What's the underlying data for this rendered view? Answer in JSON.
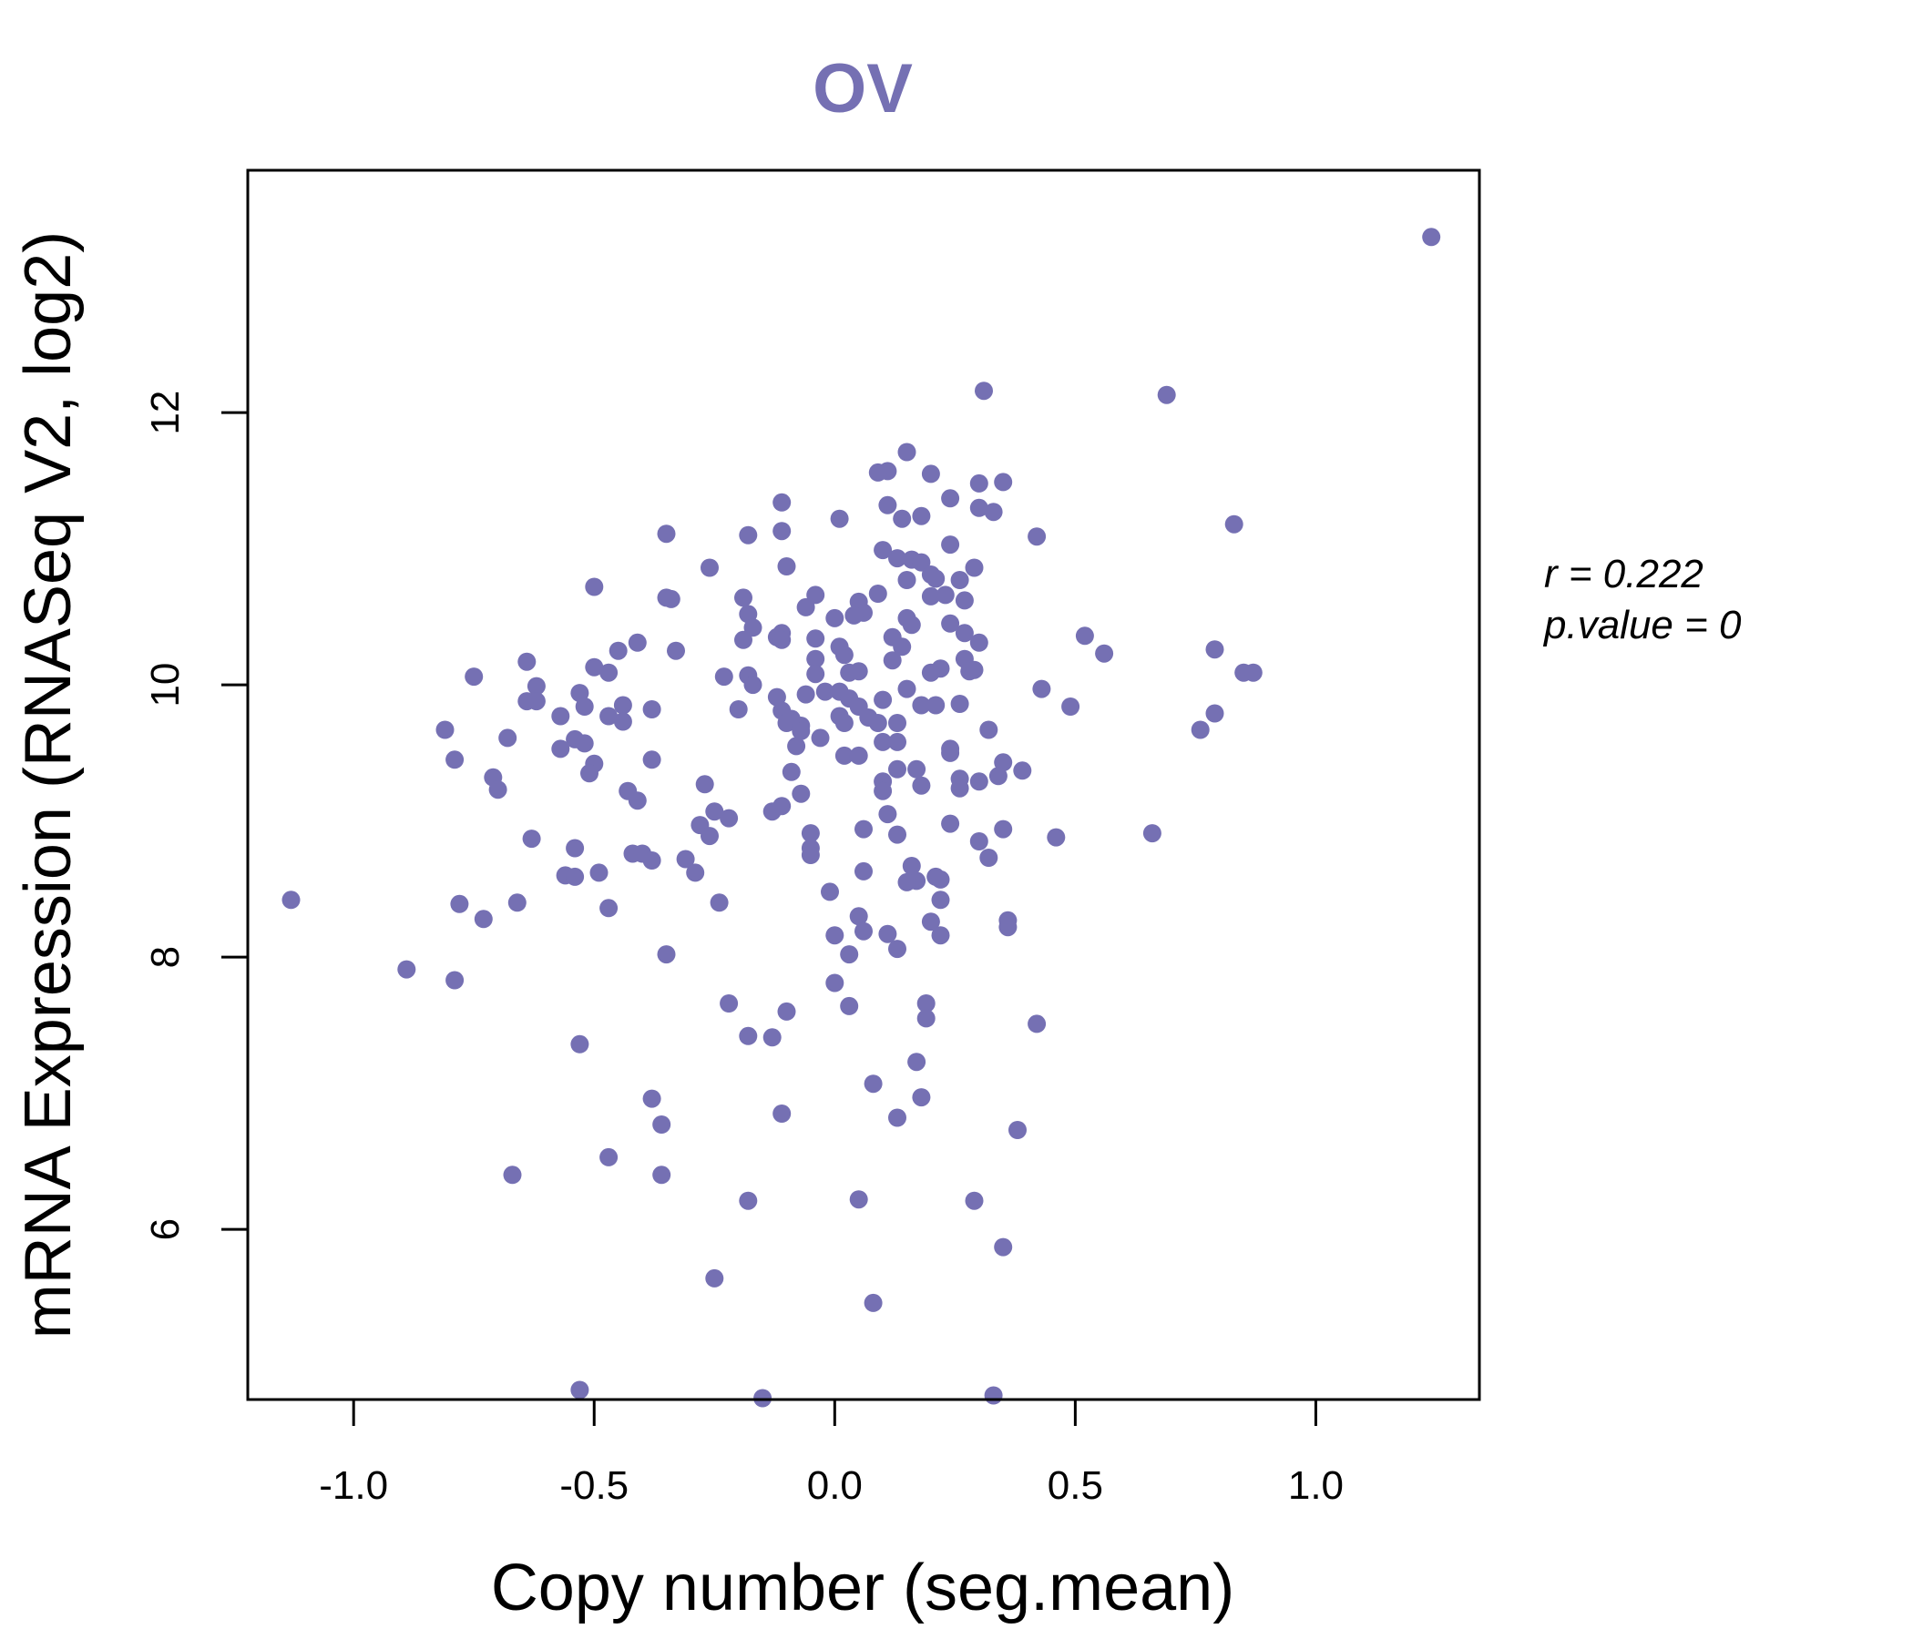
{
  "chart_data": {
    "type": "scatter",
    "title": "OV",
    "xlabel": "Copy number (seg.mean)",
    "ylabel": "mRNA Expression (RNASeq V2, log2)",
    "xlim": [
      -1.22,
      1.34
    ],
    "ylim": [
      4.75,
      13.78
    ],
    "xticks": [
      -1.0,
      -0.5,
      0.0,
      0.5,
      1.0
    ],
    "xtick_labels": [
      "-1.0",
      "-0.5",
      "0.0",
      "0.5",
      "1.0"
    ],
    "yticks": [
      6,
      8,
      10,
      12
    ],
    "ytick_labels": [
      "6",
      "8",
      "10",
      "12"
    ],
    "grid": false,
    "legend": "none",
    "annotations": [
      "r = 0.222",
      "p.value = 0"
    ],
    "colors": {
      "points": "#7570B3",
      "title": "#7570B3"
    },
    "points": [
      [
        1.24,
        13.29
      ],
      [
        0.31,
        12.16
      ],
      [
        0.69,
        12.13
      ],
      [
        0.15,
        11.71
      ],
      [
        0.11,
        11.57
      ],
      [
        0.2,
        11.55
      ],
      [
        0.09,
        11.56
      ],
      [
        0.3,
        11.48
      ],
      [
        0.35,
        11.49
      ],
      [
        0.24,
        11.37
      ],
      [
        0.11,
        11.32
      ],
      [
        -0.11,
        11.34
      ],
      [
        0.3,
        11.3
      ],
      [
        0.33,
        11.27
      ],
      [
        0.14,
        11.22
      ],
      [
        0.18,
        11.24
      ],
      [
        0.01,
        11.22
      ],
      [
        0.83,
        11.18
      ],
      [
        -0.11,
        11.13
      ],
      [
        0.42,
        11.09
      ],
      [
        -0.35,
        11.11
      ],
      [
        -0.18,
        11.1
      ],
      [
        0.24,
        11.03
      ],
      [
        0.1,
        10.99
      ],
      [
        0.13,
        10.93
      ],
      [
        0.16,
        10.92
      ],
      [
        0.18,
        10.9
      ],
      [
        -0.26,
        10.86
      ],
      [
        -0.1,
        10.87
      ],
      [
        0.29,
        10.86
      ],
      [
        0.2,
        10.81
      ],
      [
        0.15,
        10.77
      ],
      [
        0.21,
        10.78
      ],
      [
        0.26,
        10.77
      ],
      [
        -0.5,
        10.72
      ],
      [
        0.09,
        10.67
      ],
      [
        -0.04,
        10.66
      ],
      [
        -0.35,
        10.64
      ],
      [
        -0.34,
        10.63
      ],
      [
        -0.19,
        10.64
      ],
      [
        0.2,
        10.65
      ],
      [
        0.23,
        10.66
      ],
      [
        0.27,
        10.62
      ],
      [
        0.05,
        10.61
      ],
      [
        -0.06,
        10.57
      ],
      [
        0.06,
        10.53
      ],
      [
        -0.18,
        10.52
      ],
      [
        0.04,
        10.51
      ],
      [
        0.0,
        10.49
      ],
      [
        0.15,
        10.49
      ],
      [
        0.16,
        10.44
      ],
      [
        -0.17,
        10.42
      ],
      [
        -0.11,
        10.38
      ],
      [
        -0.12,
        10.35
      ],
      [
        0.24,
        10.45
      ],
      [
        0.12,
        10.35
      ],
      [
        0.52,
        10.36
      ],
      [
        0.27,
        10.38
      ],
      [
        -0.19,
        10.33
      ],
      [
        -0.04,
        10.34
      ],
      [
        -0.41,
        10.31
      ],
      [
        -0.11,
        10.33
      ],
      [
        0.14,
        10.28
      ],
      [
        0.01,
        10.28
      ],
      [
        0.3,
        10.31
      ],
      [
        -0.45,
        10.25
      ],
      [
        -0.33,
        10.25
      ],
      [
        0.79,
        10.26
      ],
      [
        0.56,
        10.23
      ],
      [
        0.02,
        10.22
      ],
      [
        0.12,
        10.18
      ],
      [
        -0.64,
        10.17
      ],
      [
        -0.04,
        10.19
      ],
      [
        0.27,
        10.19
      ],
      [
        -0.5,
        10.13
      ],
      [
        -0.47,
        10.09
      ],
      [
        0.22,
        10.12
      ],
      [
        0.2,
        10.09
      ],
      [
        0.28,
        10.1
      ],
      [
        0.29,
        10.11
      ],
      [
        0.85,
        10.09
      ],
      [
        0.87,
        10.09
      ],
      [
        -0.75,
        10.06
      ],
      [
        -0.23,
        10.06
      ],
      [
        -0.18,
        10.07
      ],
      [
        -0.04,
        10.08
      ],
      [
        0.03,
        10.09
      ],
      [
        0.05,
        10.1
      ],
      [
        -0.17,
        10.0
      ],
      [
        -0.62,
        9.99
      ],
      [
        -0.53,
        9.94
      ],
      [
        -0.02,
        9.95
      ],
      [
        0.01,
        9.95
      ],
      [
        -0.06,
        9.93
      ],
      [
        0.43,
        9.97
      ],
      [
        0.15,
        9.97
      ],
      [
        -0.12,
        9.91
      ],
      [
        -0.64,
        9.88
      ],
      [
        -0.62,
        9.88
      ],
      [
        0.03,
        9.9
      ],
      [
        0.1,
        9.89
      ],
      [
        0.05,
        9.84
      ],
      [
        0.26,
        9.86
      ],
      [
        0.18,
        9.85
      ],
      [
        0.21,
        9.85
      ],
      [
        -0.44,
        9.85
      ],
      [
        -0.52,
        9.84
      ],
      [
        0.49,
        9.84
      ],
      [
        -0.38,
        9.82
      ],
      [
        -0.2,
        9.82
      ],
      [
        -0.11,
        9.81
      ],
      [
        0.79,
        9.79
      ],
      [
        -0.57,
        9.77
      ],
      [
        -0.47,
        9.77
      ],
      [
        0.01,
        9.77
      ],
      [
        0.07,
        9.76
      ],
      [
        -0.44,
        9.73
      ],
      [
        -0.09,
        9.75
      ],
      [
        -0.1,
        9.72
      ],
      [
        0.13,
        9.72
      ],
      [
        -0.07,
        9.7
      ],
      [
        0.02,
        9.72
      ],
      [
        0.09,
        9.72
      ],
      [
        0.32,
        9.67
      ],
      [
        0.76,
        9.67
      ],
      [
        -0.81,
        9.67
      ],
      [
        -0.07,
        9.66
      ],
      [
        -0.03,
        9.61
      ],
      [
        -0.68,
        9.61
      ],
      [
        -0.54,
        9.6
      ],
      [
        0.1,
        9.58
      ],
      [
        0.13,
        9.58
      ],
      [
        -0.52,
        9.57
      ],
      [
        -0.08,
        9.55
      ],
      [
        -0.57,
        9.53
      ],
      [
        0.24,
        9.53
      ],
      [
        0.24,
        9.5
      ],
      [
        0.02,
        9.48
      ],
      [
        0.05,
        9.48
      ],
      [
        -0.79,
        9.45
      ],
      [
        -0.38,
        9.45
      ],
      [
        0.35,
        9.43
      ],
      [
        -0.5,
        9.42
      ],
      [
        0.13,
        9.38
      ],
      [
        0.17,
        9.38
      ],
      [
        0.39,
        9.37
      ],
      [
        0.34,
        9.33
      ],
      [
        -0.71,
        9.32
      ],
      [
        -0.51,
        9.35
      ],
      [
        0.26,
        9.31
      ],
      [
        -0.09,
        9.36
      ],
      [
        0.3,
        9.29
      ],
      [
        0.1,
        9.29
      ],
      [
        0.18,
        9.26
      ],
      [
        -0.27,
        9.27
      ],
      [
        0.26,
        9.24
      ],
      [
        -0.43,
        9.22
      ],
      [
        -0.7,
        9.23
      ],
      [
        0.1,
        9.22
      ],
      [
        -0.07,
        9.2
      ],
      [
        -0.41,
        9.15
      ],
      [
        -0.13,
        9.07
      ],
      [
        -0.11,
        9.11
      ],
      [
        -0.25,
        9.07
      ],
      [
        -0.22,
        9.02
      ],
      [
        0.11,
        9.05
      ],
      [
        -0.28,
        8.97
      ],
      [
        0.24,
        8.98
      ],
      [
        0.06,
        8.94
      ],
      [
        0.35,
        8.94
      ],
      [
        -0.05,
        8.91
      ],
      [
        0.13,
        8.9
      ],
      [
        -0.26,
        8.89
      ],
      [
        0.66,
        8.91
      ],
      [
        0.46,
        8.88
      ],
      [
        -0.63,
        8.87
      ],
      [
        0.3,
        8.85
      ],
      [
        -0.05,
        8.8
      ],
      [
        -0.54,
        8.8
      ],
      [
        -0.42,
        8.76
      ],
      [
        -0.4,
        8.76
      ],
      [
        -0.05,
        8.75
      ],
      [
        0.32,
        8.73
      ],
      [
        -0.31,
        8.72
      ],
      [
        -0.38,
        8.71
      ],
      [
        0.16,
        8.67
      ],
      [
        0.06,
        8.63
      ],
      [
        -0.49,
        8.62
      ],
      [
        -0.29,
        8.62
      ],
      [
        -0.56,
        8.6
      ],
      [
        -0.54,
        8.59
      ],
      [
        0.21,
        8.59
      ],
      [
        0.22,
        8.57
      ],
      [
        0.17,
        8.56
      ],
      [
        0.15,
        8.55
      ],
      [
        -0.01,
        8.48
      ],
      [
        0.22,
        8.42
      ],
      [
        -0.24,
        8.4
      ],
      [
        -0.66,
        8.4
      ],
      [
        -1.13,
        8.42
      ],
      [
        -0.78,
        8.39
      ],
      [
        -0.47,
        8.36
      ],
      [
        0.05,
        8.3
      ],
      [
        -0.73,
        8.28
      ],
      [
        0.36,
        8.27
      ],
      [
        0.2,
        8.26
      ],
      [
        0.36,
        8.22
      ],
      [
        0.06,
        8.19
      ],
      [
        0.11,
        8.17
      ],
      [
        0.0,
        8.16
      ],
      [
        0.22,
        8.16
      ],
      [
        0.13,
        8.06
      ],
      [
        0.03,
        8.02
      ],
      [
        -0.35,
        8.02
      ],
      [
        -0.89,
        7.91
      ],
      [
        -0.79,
        7.83
      ],
      [
        0.0,
        7.81
      ],
      [
        -0.22,
        7.66
      ],
      [
        0.19,
        7.66
      ],
      [
        0.03,
        7.64
      ],
      [
        -0.1,
        7.6
      ],
      [
        0.19,
        7.55
      ],
      [
        0.42,
        7.51
      ],
      [
        -0.18,
        7.42
      ],
      [
        -0.13,
        7.41
      ],
      [
        -0.53,
        7.36
      ],
      [
        0.17,
        7.23
      ],
      [
        0.08,
        7.07
      ],
      [
        -0.38,
        6.96
      ],
      [
        0.18,
        6.97
      ],
      [
        -0.11,
        6.85
      ],
      [
        0.13,
        6.82
      ],
      [
        -0.36,
        6.77
      ],
      [
        0.38,
        6.73
      ],
      [
        -0.47,
        6.53
      ],
      [
        -0.67,
        6.4
      ],
      [
        -0.36,
        6.4
      ],
      [
        -0.18,
        6.21
      ],
      [
        0.05,
        6.22
      ],
      [
        0.29,
        6.21
      ],
      [
        0.35,
        5.87
      ],
      [
        -0.25,
        5.64
      ],
      [
        0.08,
        5.46
      ],
      [
        -0.53,
        4.82
      ],
      [
        -0.15,
        4.76
      ],
      [
        0.33,
        4.78
      ]
    ]
  }
}
